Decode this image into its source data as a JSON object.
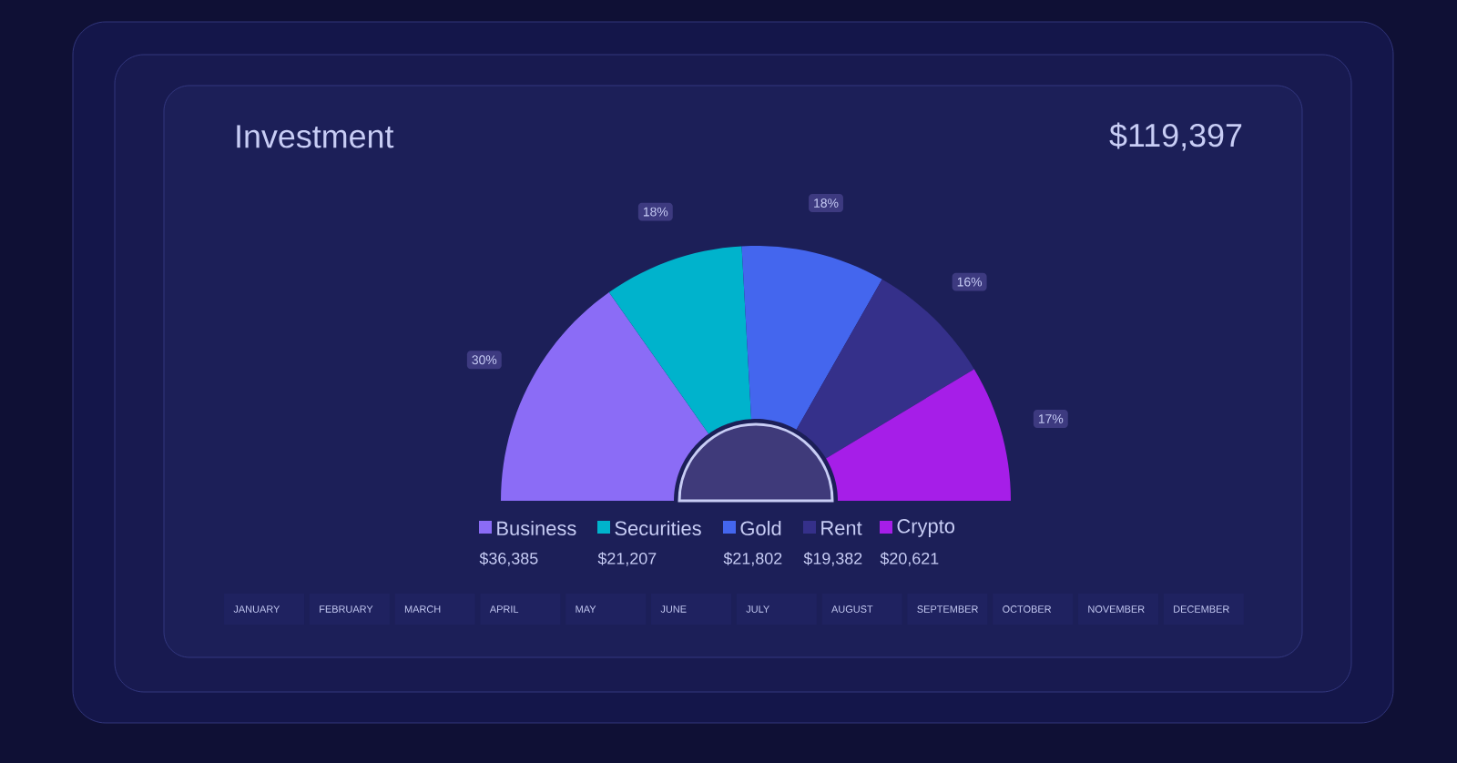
{
  "chart_data": {
    "type": "donut",
    "title": "Investment",
    "subtitle": "$119,397",
    "categories": [
      "Business",
      "Securities",
      "Gold",
      "Rent",
      "Crypto"
    ],
    "values": [
      36385,
      21207,
      21802,
      19382,
      20621
    ],
    "colors": [
      "#8b6cf6",
      "#00b3cc",
      "#4466ee",
      "#35308a",
      "#a61ee8"
    ],
    "value_labels": [
      "$36,385",
      "$21,207",
      "$21,802",
      "$19,382",
      "$20,621"
    ],
    "legend": "bottom",
    "annotations": [
      "30%",
      "18%",
      "18%",
      "16%",
      "17%",
      "JANUARY",
      "FEBRUARY",
      "MARCH",
      "APRIL",
      "MAY",
      "JUNE",
      "JULY",
      "AUGUST",
      "SEPTEMBER",
      "OCTOBER",
      "NOVEMBER",
      "DECEMBER"
    ]
  }
}
